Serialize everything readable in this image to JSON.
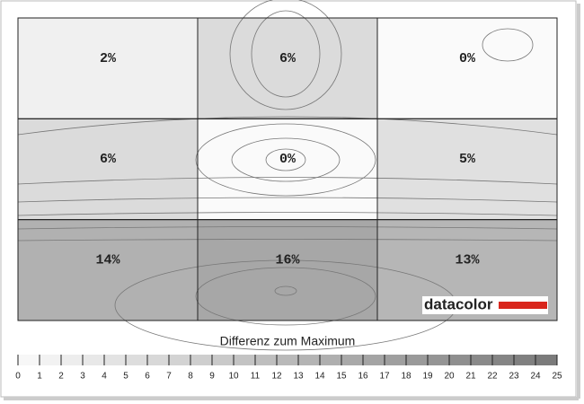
{
  "chart_data": {
    "type": "heatmap",
    "values": [
      [
        2,
        6,
        0
      ],
      [
        6,
        0,
        5
      ],
      [
        14,
        16,
        13
      ]
    ],
    "value_labels": [
      [
        "2%",
        "6%",
        "0%"
      ],
      [
        "6%",
        "0%",
        "5%"
      ],
      [
        "14%",
        "16%",
        "13%"
      ]
    ],
    "colorbar_title": "Differenz zum Maximum",
    "zlim": [
      0,
      25
    ],
    "zticks": [
      0,
      1,
      2,
      3,
      4,
      5,
      6,
      7,
      8,
      9,
      10,
      11,
      12,
      13,
      14,
      15,
      16,
      17,
      18,
      19,
      20,
      21,
      22,
      23,
      24,
      25
    ],
    "brand": "datacolor"
  }
}
